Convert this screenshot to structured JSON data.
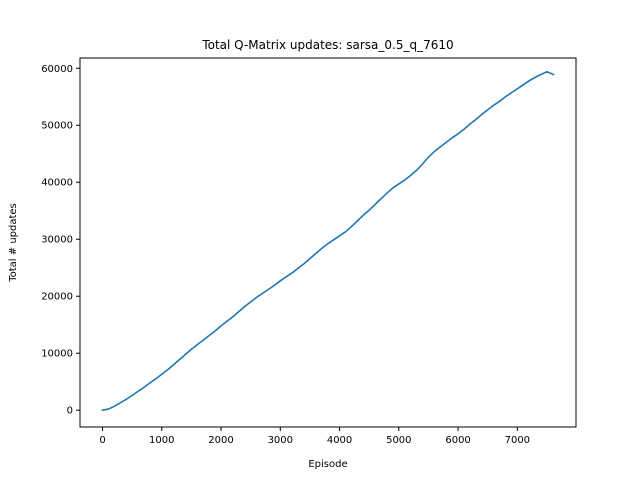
{
  "chart_data": {
    "type": "line",
    "title": "Total Q-Matrix updates: sarsa_0.5_q_7610",
    "xlabel": "Episode",
    "ylabel": "Total # updates",
    "xlim": [
      -380,
      7990
    ],
    "ylim": [
      -2950,
      61800
    ],
    "xticks": [
      0,
      1000,
      2000,
      3000,
      4000,
      5000,
      6000,
      7000
    ],
    "yticks": [
      0,
      10000,
      20000,
      30000,
      40000,
      50000,
      60000
    ],
    "grid": false,
    "legend": "none",
    "series": [
      {
        "color": "#1f77b4",
        "x": [
          0,
          100,
          200,
          300,
          400,
          500,
          600,
          700,
          800,
          900,
          1000,
          1100,
          1200,
          1300,
          1400,
          1500,
          1600,
          1700,
          1800,
          1900,
          2000,
          2100,
          2200,
          2300,
          2400,
          2500,
          2600,
          2700,
          2800,
          2900,
          3000,
          3100,
          3200,
          3300,
          3400,
          3500,
          3600,
          3700,
          3800,
          3900,
          4000,
          4100,
          4200,
          4300,
          4400,
          4500,
          4600,
          4700,
          4800,
          4900,
          5000,
          5100,
          5200,
          5300,
          5400,
          5500,
          5600,
          5700,
          5800,
          5900,
          6000,
          6100,
          6200,
          6300,
          6400,
          6500,
          6600,
          6700,
          6800,
          6900,
          7000,
          7100,
          7200,
          7300,
          7400,
          7500,
          7610
        ],
        "y": [
          0,
          200,
          700,
          1300,
          1900,
          2600,
          3300,
          4000,
          4800,
          5500,
          6300,
          7100,
          8000,
          8900,
          9800,
          10700,
          11500,
          12300,
          13100,
          13900,
          14800,
          15600,
          16400,
          17300,
          18200,
          19000,
          19800,
          20500,
          21200,
          21900,
          22700,
          23400,
          24100,
          24900,
          25700,
          26600,
          27500,
          28400,
          29200,
          29900,
          30600,
          31300,
          32200,
          33200,
          34200,
          35100,
          36100,
          37100,
          38100,
          39000,
          39700,
          40400,
          41200,
          42100,
          43200,
          44400,
          45400,
          46200,
          47000,
          47800,
          48500,
          49300,
          50200,
          51000,
          51900,
          52700,
          53500,
          54200,
          55000,
          55700,
          56400,
          57100,
          57800,
          58400,
          58900,
          59400,
          58900
        ]
      }
    ]
  }
}
